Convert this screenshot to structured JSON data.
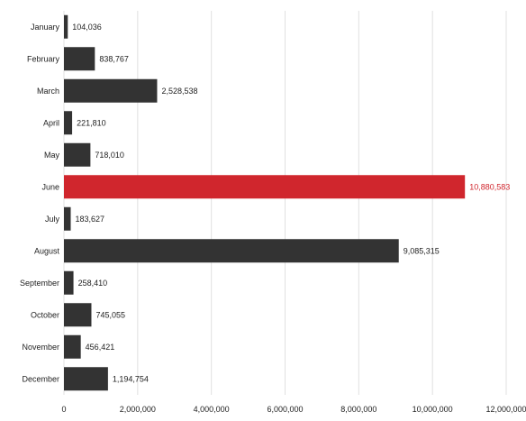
{
  "chart_data": {
    "type": "bar",
    "orientation": "horizontal",
    "categories": [
      "January",
      "February",
      "March",
      "April",
      "May",
      "June",
      "July",
      "August",
      "September",
      "October",
      "November",
      "December"
    ],
    "values": [
      104036,
      838767,
      2528538,
      221810,
      718010,
      10880583,
      183627,
      9085315,
      258410,
      745055,
      456421,
      1194754
    ],
    "value_labels": [
      "104,036",
      "838,767",
      "2,528,538",
      "221,810",
      "718,010",
      "10,880,583",
      "183,627",
      "9,085,315",
      "258,410",
      "745,055",
      "456,421",
      "1,194,754"
    ],
    "highlight_index": 5,
    "x_ticks": [
      0,
      2000000,
      4000000,
      6000000,
      8000000,
      10000000,
      12000000
    ],
    "x_tick_labels": [
      "0",
      "2,000,000",
      "4,000,000",
      "6,000,000",
      "8,000,000",
      "10,000,000",
      "12,000,000"
    ],
    "xlim": [
      0,
      12000000
    ],
    "grid": true,
    "legend": "none",
    "colors": {
      "bar": "#333333",
      "highlight": "#d0262d",
      "grid": "#e0e0e0",
      "text": "#222222"
    }
  }
}
